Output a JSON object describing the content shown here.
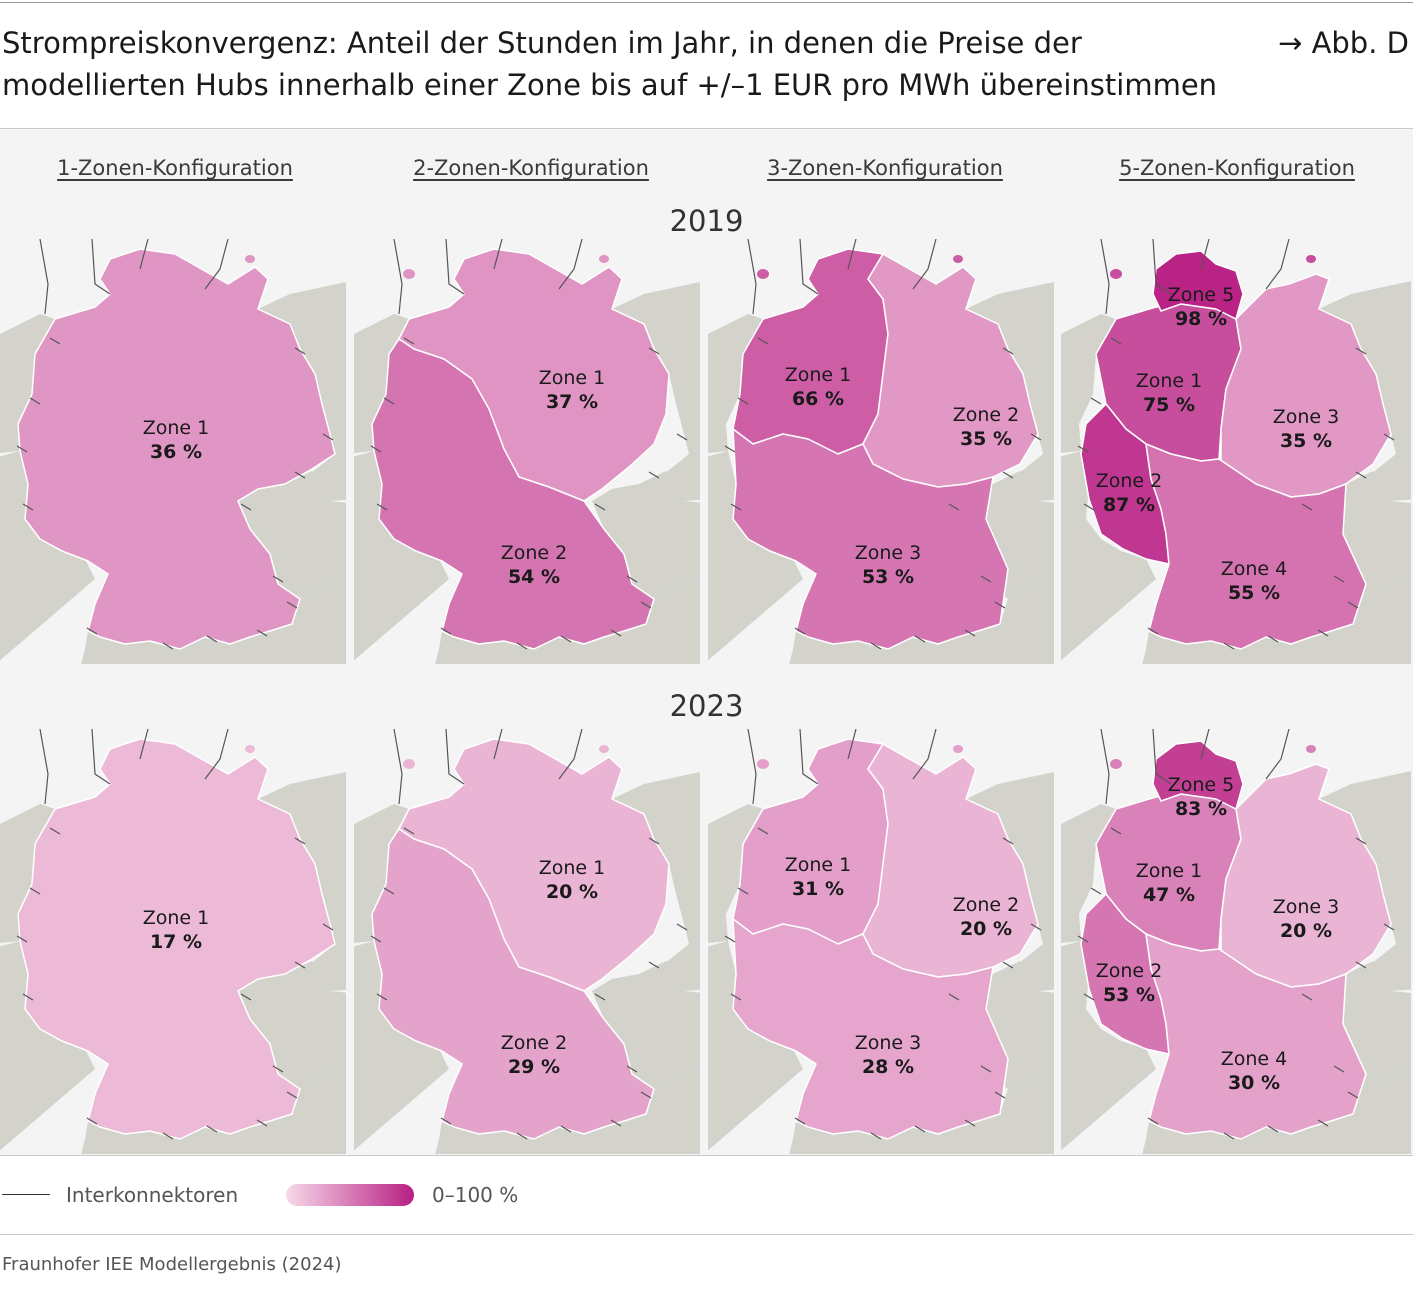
{
  "title": "Strompreiskonvergenz: Anteil der Stunden im Jahr, in denen die Preise der modellierten Hubs innerhalb einer Zone bis auf +/–1 EUR pro MWh übereinstimmen",
  "figure_ref": "→ Abb. D",
  "columns": [
    "1-Zonen-Konfiguration",
    "2-Zonen-Konfiguration",
    "3-Zonen-Konfiguration",
    "5-Zonen-Konfiguration"
  ],
  "years": [
    "2019",
    "2023"
  ],
  "zone_values": {
    "2019": [
      [
        {
          "zone": "Zone 1",
          "value": 36,
          "label": "36 %"
        }
      ],
      [
        {
          "zone": "Zone 1",
          "value": 37,
          "label": "37 %"
        },
        {
          "zone": "Zone 2",
          "value": 54,
          "label": "54 %"
        }
      ],
      [
        {
          "zone": "Zone 1",
          "value": 66,
          "label": "66 %"
        },
        {
          "zone": "Zone 2",
          "value": 35,
          "label": "35 %"
        },
        {
          "zone": "Zone 3",
          "value": 53,
          "label": "53 %"
        }
      ],
      [
        {
          "zone": "Zone 1",
          "value": 75,
          "label": "75 %"
        },
        {
          "zone": "Zone 2",
          "value": 87,
          "label": "87 %"
        },
        {
          "zone": "Zone 3",
          "value": 35,
          "label": "35 %"
        },
        {
          "zone": "Zone 4",
          "value": 55,
          "label": "55 %"
        },
        {
          "zone": "Zone 5",
          "value": 98,
          "label": "98 %"
        }
      ]
    ],
    "2023": [
      [
        {
          "zone": "Zone 1",
          "value": 17,
          "label": "17 %"
        }
      ],
      [
        {
          "zone": "Zone 1",
          "value": 20,
          "label": "20 %"
        },
        {
          "zone": "Zone 2",
          "value": 29,
          "label": "29 %"
        }
      ],
      [
        {
          "zone": "Zone 1",
          "value": 31,
          "label": "31 %"
        },
        {
          "zone": "Zone 2",
          "value": 20,
          "label": "20 %"
        },
        {
          "zone": "Zone 3",
          "value": 28,
          "label": "28 %"
        }
      ],
      [
        {
          "zone": "Zone 1",
          "value": 47,
          "label": "47 %"
        },
        {
          "zone": "Zone 2",
          "value": 53,
          "label": "53 %"
        },
        {
          "zone": "Zone 3",
          "value": 20,
          "label": "20 %"
        },
        {
          "zone": "Zone 4",
          "value": 30,
          "label": "30 %"
        },
        {
          "zone": "Zone 5",
          "value": 83,
          "label": "83 %"
        }
      ]
    ]
  },
  "legend": {
    "interconnectors": "Interkonnektoren",
    "scale": "0–100 %"
  },
  "colors": {
    "scale_min": "#f7d9e8",
    "scale_max": "#b71f83",
    "neighbor_land": "#d3d3cc",
    "sea": "#f4f4f4"
  },
  "source": "Fraunhofer IEE Modellergebnis (2024)"
}
